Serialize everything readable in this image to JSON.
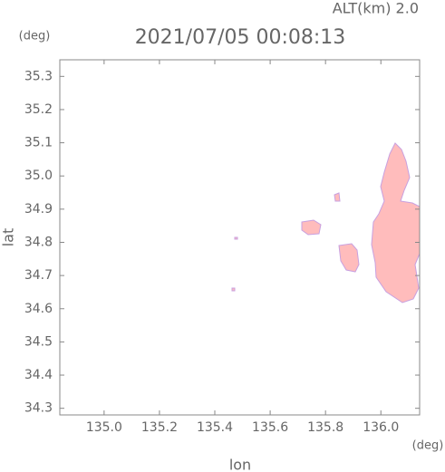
{
  "chart_data": {
    "type": "map",
    "title": "2021/07/05 00:08:13",
    "annotation": "ALT(km)  2.0",
    "x_label": "lon",
    "y_label": "lat",
    "x_unit": "(deg)",
    "y_unit": "(deg)",
    "xlim": [
      134.84,
      136.14
    ],
    "ylim": [
      34.28,
      35.35
    ],
    "xticks": [
      {
        "value": 135,
        "label": "135.0"
      },
      135.2,
      135.4,
      135.6,
      135.8,
      {
        "value": 136,
        "label": "136.0"
      }
    ],
    "yticks": [
      34.3,
      34.4,
      34.5,
      34.6,
      34.7,
      34.8,
      34.9,
      {
        "value": 35,
        "label": "35.0"
      },
      35.1,
      35.2,
      35.3
    ],
    "color": "#ffbcbc"
  }
}
